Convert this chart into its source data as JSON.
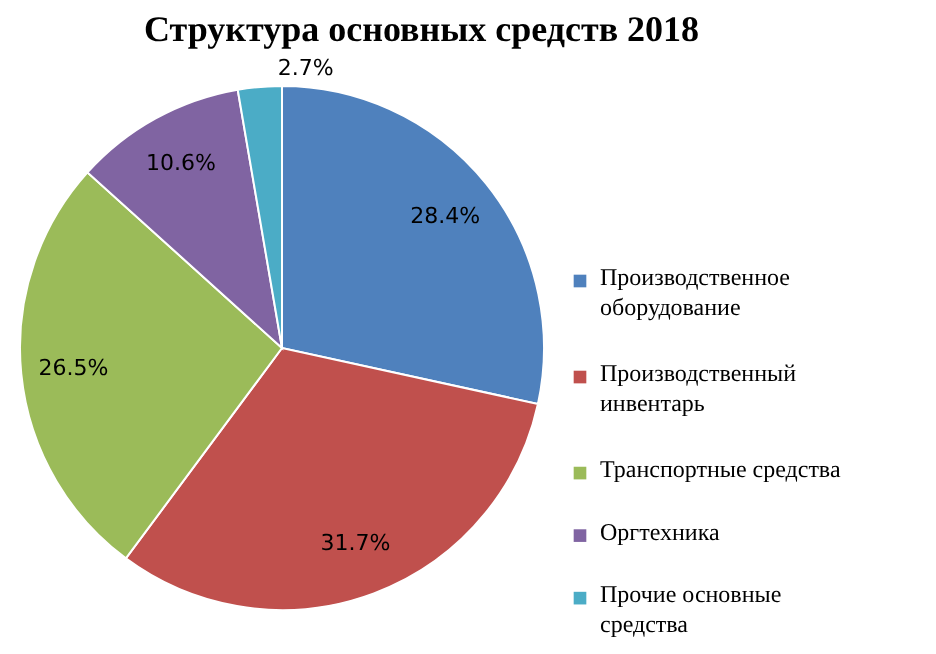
{
  "chart_data": {
    "type": "pie",
    "title": "Структура основных средств 2018",
    "categories": [
      "Производственное оборудование",
      "Производственный инвентарь",
      "Транспортные средства",
      "Оргтехника",
      "Прочие основные средства"
    ],
    "values": [
      28.4,
      31.7,
      26.5,
      10.6,
      2.7
    ],
    "value_labels": [
      "28.4%",
      "31.7%",
      "26.5%",
      "10.6%",
      "2.7%"
    ],
    "colors": [
      "#4f81bd",
      "#c0504d",
      "#9bbb59",
      "#8064a2",
      "#4bacc6"
    ],
    "legend": "right"
  }
}
